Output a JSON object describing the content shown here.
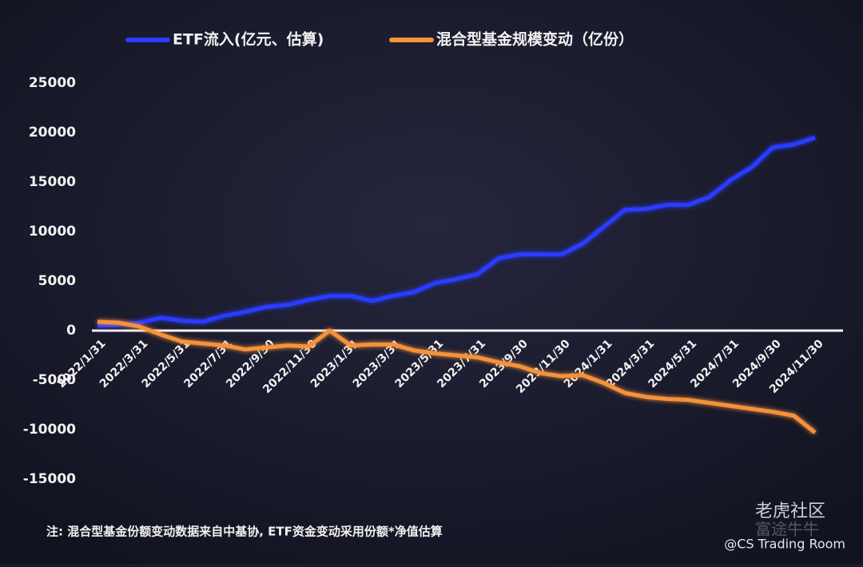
{
  "chart_data": {
    "type": "line",
    "legend": "top",
    "categories": [
      "2022/1/31",
      null,
      "2022/3/31",
      null,
      "2022/5/31",
      null,
      "2022/7/31",
      null,
      "2022/9/30",
      null,
      "2022/11/30",
      null,
      "2023/1/31",
      null,
      "2023/3/31",
      null,
      "2023/5/31",
      null,
      "2023/7/31",
      null,
      "2023/9/30",
      null,
      "2023/11/30",
      null,
      "2024/1/31",
      null,
      "2024/3/31",
      null,
      "2024/5/31",
      null,
      "2024/7/31",
      null,
      "2024/9/30",
      null,
      "2024/11/30"
    ],
    "series": [
      {
        "name": "ETF流入(亿元、估算)",
        "color": "#2a3cff",
        "values": [
          500,
          600,
          800,
          1300,
          1000,
          900,
          1500,
          1900,
          2400,
          2600,
          3100,
          3500,
          3500,
          3000,
          3500,
          3900,
          4800,
          5200,
          5700,
          7300,
          7700,
          7700,
          7700,
          8800,
          10500,
          12200,
          12300,
          12700,
          12700,
          13500,
          15200,
          16500,
          18500,
          18800,
          19500
        ]
      },
      {
        "name": "混合型基金规模变动（亿份）",
        "color": "#f5923a",
        "values": [
          900,
          800,
          400,
          -400,
          -1100,
          -1300,
          -1500,
          -1900,
          -1700,
          -1500,
          -1600,
          0,
          -1500,
          -1400,
          -1400,
          -2000,
          -2300,
          -2500,
          -2700,
          -3200,
          -3600,
          -4300,
          -4600,
          -4500,
          -5300,
          -6300,
          -6700,
          -6900,
          -7000,
          -7300,
          -7600,
          -7900,
          -8200,
          -8600,
          -10300
        ]
      }
    ],
    "ylim": [
      -15000,
      25000
    ],
    "yticks": [
      -15000,
      -10000,
      -5000,
      0,
      5000,
      10000,
      15000,
      20000,
      25000
    ],
    "grid": false,
    "note": "注: 混合型基金份额变动数据来自中基协, ETF资金变动采用份额*净值估算"
  },
  "watermark": {
    "brand": "老虎社区",
    "brand2": "富途牛牛",
    "account": "@CS Trading Room"
  }
}
